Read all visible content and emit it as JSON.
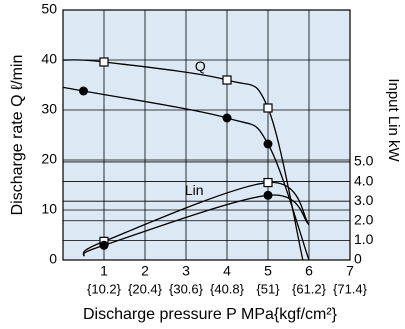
{
  "chart_data": {
    "type": "line",
    "ylabel": "Discharge rate Q ℓ/min",
    "y2label": "Input Lin kW",
    "xlabel": "Discharge pressure P  MPa{kgf/cm²}",
    "xlim": [
      0,
      7
    ],
    "xticks": [
      1,
      2,
      3,
      4,
      5,
      6,
      7
    ],
    "x2ticks": [
      {
        "value": 1,
        "label": "{10.2}"
      },
      {
        "value": 2,
        "label": "{20.4}"
      },
      {
        "value": 3,
        "label": "{30.6}"
      },
      {
        "value": 4,
        "label": "{40.8}"
      },
      {
        "value": 5,
        "label": "{51}"
      },
      {
        "value": 6,
        "label": "{61.2}"
      },
      {
        "value": 7,
        "label": "{71.4}"
      }
    ],
    "ylim": [
      0,
      50
    ],
    "yticks": [
      0,
      10,
      20,
      30,
      40,
      50
    ],
    "y2lim": [
      0,
      12.75
    ],
    "y2ticks": [
      {
        "value": 0,
        "label": "0"
      },
      {
        "value": 1,
        "label": "1.0"
      },
      {
        "value": 2,
        "label": "2.0"
      },
      {
        "value": 3,
        "label": "3.0"
      },
      {
        "value": 4,
        "label": "4.0"
      },
      {
        "value": 5,
        "label": "5.0"
      }
    ],
    "grid": true,
    "annotations": [
      {
        "text": "Q",
        "x": 3.35,
        "y": 38.5
      },
      {
        "text": "Lin",
        "x": 3.2,
        "y": 3.5,
        "axis": "y2"
      }
    ],
    "series": [
      {
        "marker": "square",
        "color": "#000000",
        "x": [
          0,
          1,
          4,
          5,
          5.85
        ],
        "values": [
          40,
          39.6,
          36,
          30.4,
          0
        ]
      },
      {
        "marker": "circle",
        "color": "#000000",
        "x": [
          0,
          0.5,
          4,
          5,
          6
        ],
        "values": [
          34.5,
          33.8,
          28.4,
          23.2,
          0
        ]
      },
      {
        "marker": "square",
        "color": "#000000",
        "axis": "y2",
        "x": [
          0.5,
          1,
          5,
          6
        ],
        "values": [
          0.2,
          0.95,
          3.95,
          1.8
        ]
      },
      {
        "marker": "circle",
        "color": "#000000",
        "axis": "y2",
        "x": [
          0.5,
          1,
          5,
          6
        ],
        "values": [
          0.2,
          0.75,
          3.3,
          1.8
        ]
      }
    ]
  }
}
